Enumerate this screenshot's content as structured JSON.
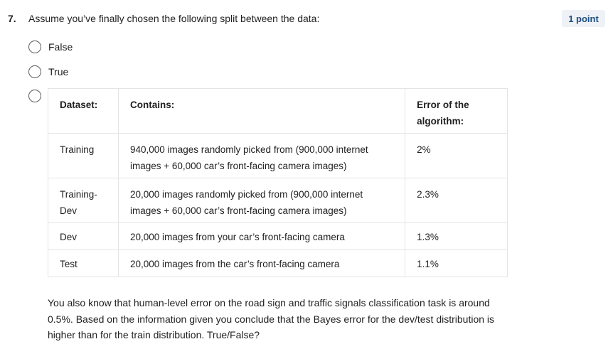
{
  "question": {
    "number": "7.",
    "prompt": "Assume you’ve finally chosen the following split between the data:",
    "points": "1 point"
  },
  "options": [
    {
      "label": "False"
    },
    {
      "label": "True"
    }
  ],
  "table": {
    "headers": [
      "Dataset:",
      "Contains:",
      "Error of the algorithm:"
    ],
    "rows": [
      {
        "dataset": "Training",
        "contains": "940,000 images randomly picked from (900,000 internet images + 60,000 car’s front-facing camera images)",
        "error": "2%"
      },
      {
        "dataset": "Training-Dev",
        "contains": "20,000 images randomly picked from (900,000 internet images + 60,000 car’s front-facing camera images)",
        "error": "2.3%"
      },
      {
        "dataset": "Dev",
        "contains": "20,000 images from your car’s front-facing camera",
        "error": "1.3%"
      },
      {
        "dataset": "Test",
        "contains": "20,000 images from the car’s front-facing camera",
        "error": "1.1%"
      }
    ]
  },
  "footer": "You also know that human-level error on the road sign and traffic signals classification task is around 0.5%. Based on the information given you conclude that the Bayes error for the dev/test distribution is higher than for the train distribution. True/False?"
}
